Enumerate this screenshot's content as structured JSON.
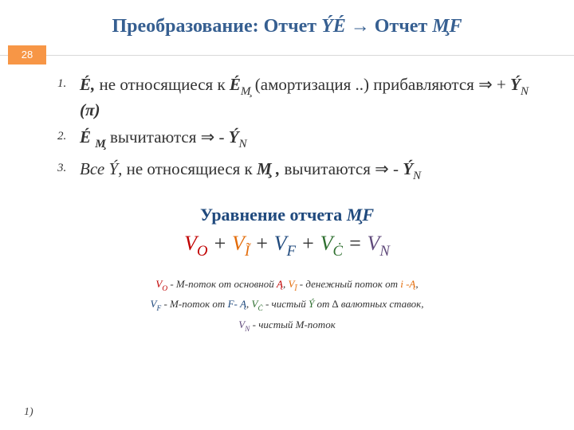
{
  "colors": {
    "title": "#365f91",
    "badge_bg": "#f79646",
    "badge_text": "#ffffff",
    "section_title": "#1f497d",
    "red": "#c00000",
    "orange": "#e36c0a",
    "blue": "#1f497d",
    "green": "#2f7030",
    "purple": "#604a7b",
    "body_text": "#333333",
    "divider": "#d9d9d9",
    "background": "#ffffff"
  },
  "typography": {
    "title_fontsize": 24,
    "list_fontsize": 21,
    "list_num_fontsize": 15,
    "section_title_fontsize": 22,
    "equation_fontsize": 26,
    "legend_fontsize": 13,
    "footnote_fontsize": 14,
    "font_family": "Times New Roman"
  },
  "title": {
    "t1": "Преобразование: Отчет ",
    "t2": "ÝÉ",
    "t3": "  → Отчет ",
    "t4": "М̧F"
  },
  "badge": "28",
  "list": [
    {
      "num": "1.",
      "p1": "É,",
      "p2": " не относящиеся к ",
      "p3": "É",
      "p3s": "М̧",
      "p4": "   (амортизация ..) прибавляются ⇒ + ",
      "p5": "Ý",
      "p5s": "N",
      "p6": " (π)"
    },
    {
      "num": "2.",
      "p1": "É ",
      "p1s": "М̧",
      "p2": " вычитаются ⇒ - ",
      "p3": "Ý",
      "p3s": "N"
    },
    {
      "num": "3.",
      "p1": "Все Ý,",
      "p2": " не относящиеся к ",
      "p3": "М̧ ,",
      "p4": " вычитаются ⇒ - ",
      "p5": "Ý",
      "p5s": "N"
    }
  ],
  "section_title": {
    "t1": "Уравнение отчета ",
    "t2": "М̧F"
  },
  "equation": {
    "v": "V",
    "o": "O",
    "plus": " + ",
    "i": "Ĩ",
    "f": "F",
    "c": "Ċ",
    "eq": " = ",
    "n": "N"
  },
  "legend": {
    "l1a": "V",
    "l1as": "O",
    "l1b": " - M-поток от основной ",
    "l1c": "Ą",
    "l1d": ", ",
    "l1e": "V",
    "l1es": "Ĩ",
    "l1f": " - денежный поток от ",
    "l1g": "i -Ą",
    "l1h": ",",
    "l2a": "V",
    "l2as": "F",
    "l2b": " - M-поток от ",
    "l2c": "F- Ą",
    "l2d": ", ",
    "l2e": "V",
    "l2es": "Ċ",
    "l2f": " - чистый ",
    "l2g": "Ý",
    "l2h": " от ∆ валютных ставок,",
    "l3a": "V",
    "l3as": "N",
    "l3b": " - чистый M-поток"
  },
  "footnote": "1)"
}
